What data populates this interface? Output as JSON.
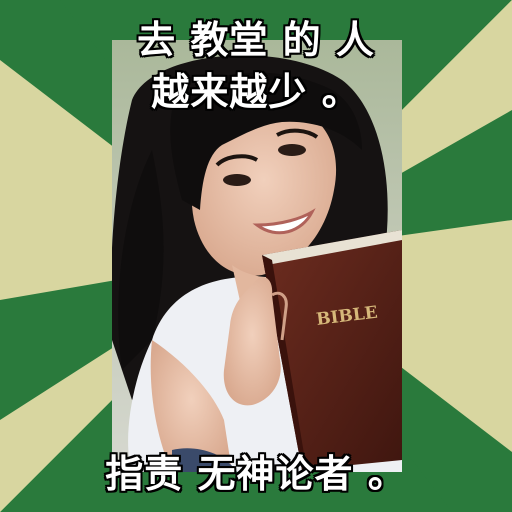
{
  "captions": {
    "top_line_1": "去 教堂 的 人",
    "top_line_2": "越来越少 。",
    "bottom": "指责 无神论者 。"
  },
  "photo": {
    "book_label": "BIBLE"
  },
  "colors": {
    "green": "#2a7a3c",
    "cream": "#d8d6a0",
    "caption_fill": "#ffffff",
    "caption_outline": "#000000",
    "book_cover": "#5a2419"
  }
}
